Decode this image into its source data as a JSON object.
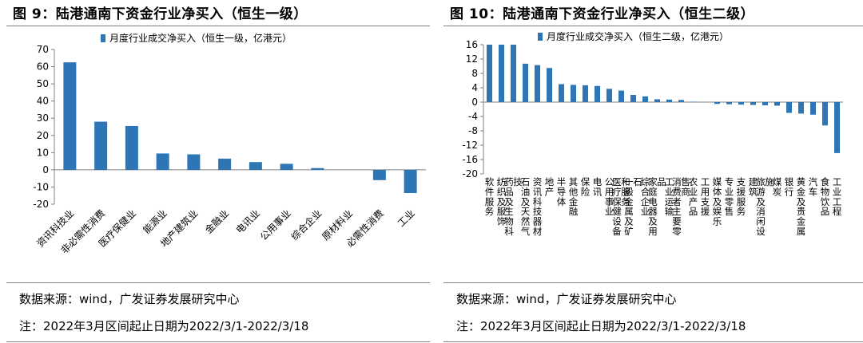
{
  "panels": [
    {
      "title": "图 9：陆港通南下资金行业净买入（恒生一级）",
      "source": "数据来源：wind，广发证券发展研究中心",
      "note": "注：2022年3月区间起止日期为2022/3/1-2022/3/18"
    },
    {
      "title": "图 10：陆港通南下资金行业净买入（恒生二级）",
      "source": "数据来源：wind，广发证券发展研究中心",
      "note": "注：2022年3月区间起止日期为2022/3/1-2022/3/18"
    }
  ],
  "colors": {
    "bar": "#2e75b6",
    "axis": "#808080",
    "rule": "#7f7f7f"
  },
  "chart_data": [
    {
      "type": "bar",
      "title": "",
      "categories": [
        "资讯科技业",
        "非必需性消费",
        "医疗保健业",
        "能源业",
        "地产建筑业",
        "金融业",
        "电讯业",
        "公用事业",
        "综合企业",
        "原材料业",
        "必需性消费",
        "工业"
      ],
      "series": [
        {
          "name": "月度行业成交净买入（恒生一级，亿港元）",
          "values": [
            62.5,
            28,
            25.5,
            9.5,
            9,
            6.5,
            4.5,
            3.5,
            1,
            0,
            -6,
            -13.5
          ]
        }
      ],
      "ylim": [
        -20,
        70
      ],
      "yticks": [
        -20,
        -10,
        0,
        10,
        20,
        30,
        40,
        50,
        60,
        70
      ],
      "legend": "top",
      "grid": false
    },
    {
      "type": "bar",
      "title": "",
      "categories": [
        "软件服务",
        "纺织及服饰",
        "药品及生物科技",
        "石油及天然气",
        "资讯科技器材",
        "地产",
        "半导体",
        "其他金融",
        "保险",
        "电讯",
        "公用事业",
        "医疗保健设备和服务",
        "一般金属及矿石",
        "综合企业",
        "家庭电器及用品",
        "工业运输",
        "消费者主要零售商",
        "农业产品",
        "工用支援",
        "媒体及娱乐",
        "专业零售",
        "支援服务",
        "建筑",
        "旅游及消闲设施",
        "煤炭",
        "银行",
        "黄金及贵金属",
        "汽车",
        "食物饮品",
        "工业工程"
      ],
      "series": [
        {
          "name": "月度行业成交净买入（恒生二级，亿港元）",
          "values": [
            16,
            16,
            16,
            10.7,
            10.3,
            9.5,
            5,
            4.8,
            4.7,
            4.5,
            3.7,
            3.2,
            2,
            1.6,
            0.8,
            0.7,
            0.6,
            0.1,
            0,
            -0.5,
            -0.6,
            -0.7,
            -0.8,
            -0.9,
            -1,
            -3,
            -3.2,
            -3.5,
            -6.5,
            -14.2
          ]
        }
      ],
      "ylim": [
        -20,
        16
      ],
      "yticks": [
        -20,
        -16,
        -12,
        -8,
        -4,
        0,
        4,
        8,
        12,
        16
      ],
      "legend": "top",
      "grid": false
    }
  ]
}
